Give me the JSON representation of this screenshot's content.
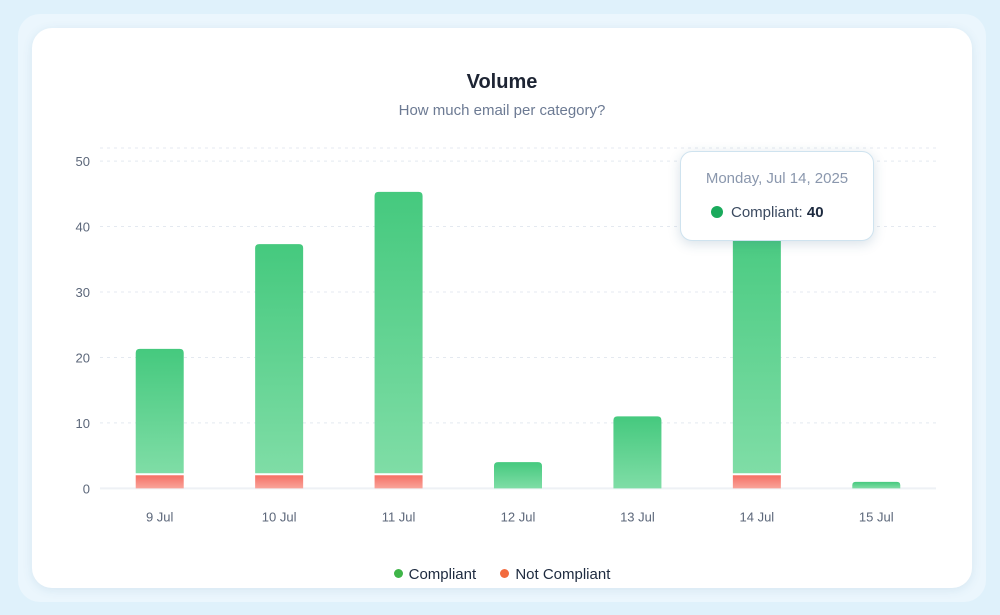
{
  "chart_data": {
    "type": "bar",
    "stacked": true,
    "title": "Volume",
    "subtitle": "How much email per category?",
    "categories": [
      "9 Jul",
      "10 Jul",
      "11 Jul",
      "12 Jul",
      "13 Jul",
      "14 Jul",
      "15 Jul"
    ],
    "series": [
      {
        "name": "Not Compliant",
        "color": "#f26b5b",
        "values": [
          2,
          2,
          2,
          0,
          0,
          2,
          0
        ]
      },
      {
        "name": "Compliant",
        "color": "#2fbf71",
        "values": [
          19,
          35,
          43,
          4,
          11,
          40,
          1
        ]
      }
    ],
    "y_ticks": [
      "0",
      "10",
      "20",
      "30",
      "40",
      "50"
    ],
    "ylim": [
      -3,
      52
    ],
    "grid": true
  },
  "tooltip": {
    "date": "Monday, Jul 14, 2025",
    "label": "Compliant:",
    "value": "40",
    "category_index": 5,
    "dot_color": "#1aaa5c"
  },
  "legend": [
    {
      "label": "Compliant",
      "color": "#3fb548"
    },
    {
      "label": "Not Compliant",
      "color": "#f26b3e"
    }
  ]
}
